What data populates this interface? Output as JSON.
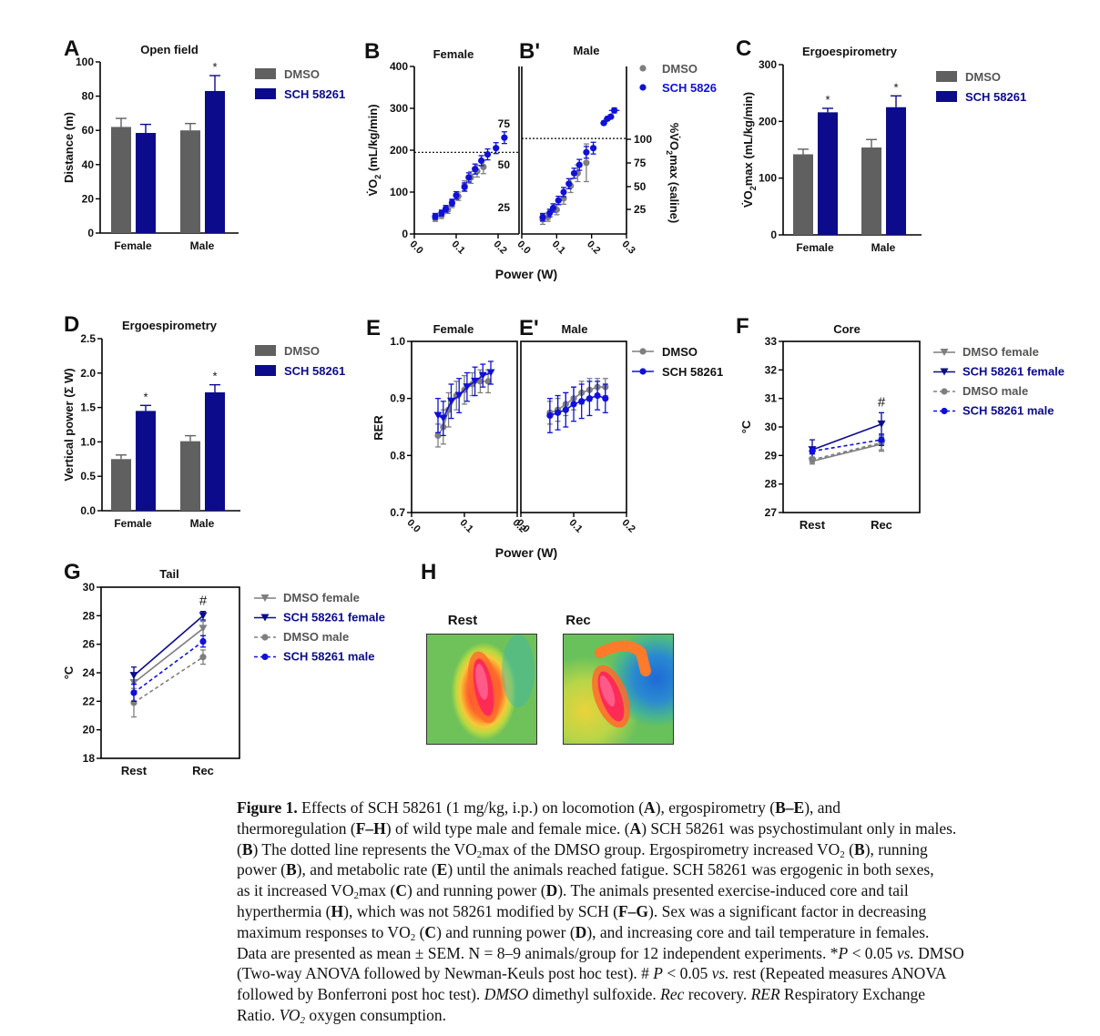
{
  "colors": {
    "dmso": "#606060",
    "sch": "#0b0b8c",
    "sch_bright": "#1010d8",
    "dmso_light": "#7f7f7f"
  },
  "chart_data": [
    {
      "id": "A",
      "panel_letter": "A",
      "type": "bar",
      "title": "Open field",
      "ylabel": "Distance (m)",
      "ylim": [
        0,
        100
      ],
      "yticks": [
        0,
        20,
        40,
        60,
        80,
        100
      ],
      "categories": [
        "Female",
        "Male"
      ],
      "series": [
        {
          "name": "DMSO",
          "values": [
            62,
            60
          ],
          "errors": [
            5,
            4
          ]
        },
        {
          "name": "SCH 58261",
          "values": [
            58.5,
            83
          ],
          "errors": [
            5,
            9
          ]
        }
      ],
      "annotations": [
        {
          "text": "*",
          "series": 1,
          "category": 1
        }
      ],
      "legend": [
        "DMSO",
        "SCH 58261"
      ]
    },
    {
      "id": "B",
      "panel_letter": "B",
      "type": "scatter",
      "title": "Female",
      "ylabel_main": "V̇O",
      "ylabel_sub": "2",
      "ylabel_rest": " (mL/kg/min)",
      "xlim": [
        0,
        0.25
      ],
      "ylim": [
        0,
        400
      ],
      "xticks": [
        "0.0",
        "0.1",
        "0.2"
      ],
      "yticks": [
        0,
        100,
        200,
        300,
        400
      ],
      "right_ticks": [
        "25",
        "50",
        "75"
      ],
      "vo2max_line": 195,
      "series": [
        {
          "name": "DMSO",
          "x": [
            0.05,
            0.065,
            0.08,
            0.09,
            0.105,
            0.12,
            0.135,
            0.15,
            0.165
          ],
          "y": [
            38,
            45,
            58,
            72,
            90,
            115,
            135,
            150,
            160
          ],
          "yerr": [
            8,
            8,
            9,
            9,
            10,
            12,
            14,
            14,
            16
          ]
        },
        {
          "name": "SCH 58261",
          "x": [
            0.05,
            0.065,
            0.075,
            0.09,
            0.1,
            0.12,
            0.13,
            0.145,
            0.16,
            0.175,
            0.195,
            0.215
          ],
          "y": [
            42,
            50,
            60,
            75,
            92,
            112,
            135,
            155,
            175,
            190,
            205,
            230
          ],
          "yerr": [
            7,
            7,
            8,
            8,
            9,
            10,
            11,
            12,
            12,
            13,
            13,
            14
          ]
        }
      ]
    },
    {
      "id": "B2",
      "panel_letter": "B'",
      "type": "scatter",
      "title": "Male",
      "right_label_main": "%V̇O",
      "right_label_sub": "2",
      "right_label_rest": "max (saline)",
      "xlim": [
        0,
        0.3
      ],
      "ylim": [
        0,
        400
      ],
      "xticks": [
        "0.0",
        "0.1",
        "0.2",
        "0.3"
      ],
      "right_ticks": [
        "25",
        "50",
        "75",
        "100"
      ],
      "vo2max_line": 228,
      "series": [
        {
          "name": "DMSO",
          "x": [
            0.06,
            0.075,
            0.1,
            0.12,
            0.14,
            0.16,
            0.185
          ],
          "y": [
            35,
            40,
            58,
            85,
            115,
            145,
            170
          ],
          "yerr": [
            12,
            10,
            12,
            14,
            16,
            20,
            45
          ]
        },
        {
          "name": "SCH 5826",
          "x": [
            0.06,
            0.08,
            0.09,
            0.105,
            0.12,
            0.135,
            0.15,
            0.165,
            0.185,
            0.205,
            0.235,
            0.245,
            0.255,
            0.265
          ],
          "y": [
            40,
            50,
            62,
            80,
            100,
            120,
            145,
            165,
            195,
            205,
            265,
            275,
            280,
            295
          ],
          "yerr": [
            9,
            9,
            10,
            10,
            11,
            12,
            12,
            13,
            14,
            14,
            4,
            4,
            4,
            6
          ],
          "xerr": [
            0,
            0,
            0,
            0,
            0,
            0,
            0,
            0,
            0,
            0,
            0.01,
            0.01,
            0.01,
            0.015
          ]
        }
      ],
      "legend": [
        "DMSO",
        "SCH 5826"
      ]
    },
    {
      "id": "C",
      "panel_letter": "C",
      "type": "bar",
      "title": "Ergoespirometry",
      "ylabel_main": "V̇O",
      "ylabel_sub": "2",
      "ylabel_rest": "max (mL/kg/min)",
      "ylim": [
        0,
        300
      ],
      "yticks": [
        0,
        100,
        200,
        300
      ],
      "categories": [
        "Female",
        "Male"
      ],
      "series": [
        {
          "name": "DMSO",
          "values": [
            142,
            154
          ],
          "errors": [
            9,
            14
          ]
        },
        {
          "name": "SCH 58261",
          "values": [
            216,
            225
          ],
          "errors": [
            7,
            20
          ]
        }
      ],
      "annotations": [
        {
          "text": "*",
          "series": 1,
          "category": 0
        },
        {
          "text": "*",
          "series": 1,
          "category": 1
        }
      ],
      "legend": [
        "DMSO",
        "SCH 58261"
      ]
    },
    {
      "id": "D",
      "panel_letter": "D",
      "type": "bar",
      "title": "Ergoespirometry",
      "ylabel": "Vertical power (Σ W)",
      "ylim": [
        0,
        2.5
      ],
      "yticks": [
        "0.0",
        "0.5",
        "1.0",
        "1.5",
        "2.0",
        "2.5"
      ],
      "categories": [
        "Female",
        "Male"
      ],
      "series": [
        {
          "name": "DMSO",
          "values": [
            0.75,
            1.01
          ],
          "errors": [
            0.06,
            0.08
          ]
        },
        {
          "name": "SCH 58261",
          "values": [
            1.45,
            1.72
          ],
          "errors": [
            0.08,
            0.11
          ]
        }
      ],
      "annotations": [
        {
          "text": "*",
          "series": 1,
          "category": 0
        },
        {
          "text": "*",
          "series": 1,
          "category": 1
        }
      ],
      "legend": [
        "DMSO",
        "SCH 58261"
      ]
    },
    {
      "id": "E",
      "panel_letter": "E",
      "type": "line",
      "title": "Female",
      "ylabel": "RER",
      "xlim": [
        0,
        0.2
      ],
      "ylim": [
        0.7,
        1.0
      ],
      "xticks": [
        "0.0",
        "0.1",
        "0.2"
      ],
      "yticks": [
        "0.7",
        "0.8",
        "0.9",
        "1.0"
      ],
      "series": [
        {
          "name": "DMSO",
          "x": [
            0.05,
            0.06,
            0.07,
            0.085,
            0.1,
            0.115,
            0.13,
            0.145
          ],
          "y": [
            0.835,
            0.85,
            0.88,
            0.905,
            0.915,
            0.925,
            0.93,
            0.93
          ],
          "yerr": [
            0.02,
            0.03,
            0.03,
            0.025,
            0.025,
            0.02,
            0.02,
            0.02
          ]
        },
        {
          "name": "SCH 58261",
          "x": [
            0.05,
            0.06,
            0.075,
            0.09,
            0.105,
            0.12,
            0.135,
            0.15
          ],
          "y": [
            0.87,
            0.865,
            0.895,
            0.905,
            0.92,
            0.93,
            0.94,
            0.945
          ],
          "yerr": [
            0.03,
            0.03,
            0.03,
            0.03,
            0.025,
            0.025,
            0.02,
            0.02
          ]
        }
      ]
    },
    {
      "id": "E2",
      "panel_letter": "E'",
      "type": "line",
      "title": "Male",
      "xlim": [
        0,
        0.2
      ],
      "ylim": [
        0.7,
        1.0
      ],
      "xticks": [
        "0.0",
        "0.1",
        "0.2"
      ],
      "series": [
        {
          "name": "DMSO",
          "x": [
            0.055,
            0.07,
            0.085,
            0.1,
            0.115,
            0.13,
            0.145,
            0.16
          ],
          "y": [
            0.875,
            0.88,
            0.89,
            0.9,
            0.91,
            0.915,
            0.92,
            0.92
          ],
          "yerr": [
            0.02,
            0.02,
            0.02,
            0.02,
            0.02,
            0.02,
            0.015,
            0.015
          ]
        },
        {
          "name": "SCH 58261",
          "x": [
            0.055,
            0.07,
            0.085,
            0.1,
            0.115,
            0.13,
            0.145,
            0.16
          ],
          "y": [
            0.87,
            0.875,
            0.88,
            0.89,
            0.895,
            0.9,
            0.905,
            0.9
          ],
          "yerr": [
            0.03,
            0.03,
            0.03,
            0.03,
            0.03,
            0.03,
            0.025,
            0.025
          ]
        }
      ],
      "legend": [
        "DMSO",
        "SCH 58261"
      ],
      "xlabel": "Power (W)"
    },
    {
      "id": "F",
      "panel_letter": "F",
      "type": "line",
      "title": "Core",
      "ylabel": "°C",
      "ylim": [
        27,
        33
      ],
      "yticks": [
        27,
        28,
        29,
        30,
        31,
        32,
        33
      ],
      "categories": [
        "Rest",
        "Rec"
      ],
      "series": [
        {
          "name": "DMSO female",
          "values": [
            28.8,
            29.4
          ],
          "errors": [
            0.1,
            0.25
          ]
        },
        {
          "name": "SCH 58261 female",
          "values": [
            29.2,
            30.1
          ],
          "errors": [
            0.35,
            0.4
          ]
        },
        {
          "name": "DMSO male",
          "values": [
            28.85,
            29.45
          ],
          "errors": [
            0.1,
            0.25
          ]
        },
        {
          "name": "SCH 58261 male",
          "values": [
            29.15,
            29.55
          ],
          "errors": [
            0.1,
            0.2
          ]
        }
      ],
      "annotations": [
        {
          "text": "#",
          "category": 1
        }
      ],
      "legend": [
        "DMSO female",
        "SCH 58261 female",
        "DMSO male",
        "SCH 58261 male"
      ]
    },
    {
      "id": "G",
      "panel_letter": "G",
      "type": "line",
      "title": "Tail",
      "ylabel": "°C",
      "ylim": [
        18,
        30
      ],
      "yticks": [
        18,
        20,
        22,
        24,
        26,
        28,
        30
      ],
      "categories": [
        "Rest",
        "Rec"
      ],
      "series": [
        {
          "name": "DMSO female",
          "values": [
            23.3,
            27.1
          ],
          "errors": [
            0.6,
            0.5
          ]
        },
        {
          "name": "SCH 58261 female",
          "values": [
            23.8,
            28
          ],
          "errors": [
            0.6,
            0.3
          ]
        },
        {
          "name": "DMSO male",
          "values": [
            21.9,
            25.1
          ],
          "errors": [
            1,
            0.5
          ]
        },
        {
          "name": "SCH 58261 male",
          "values": [
            22.6,
            26.2
          ],
          "errors": [
            0.6,
            0.4
          ]
        }
      ],
      "annotations": [
        {
          "text": "#",
          "category": 1
        }
      ],
      "legend": [
        "DMSO female",
        "SCH 58261 female",
        "DMSO male",
        "SCH 58261 male"
      ]
    }
  ],
  "shared_xlabel_B": "Power (W)",
  "panel_H": {
    "letter": "H",
    "labels": [
      "Rest",
      "Rec"
    ]
  },
  "caption": {
    "lines": [
      [
        {
          "t": "Figure 1.",
          "b": 1
        },
        {
          "t": "   Effects of SCH 58261 (1 mg/kg, i.p.) on locomotion ("
        },
        {
          "t": "A",
          "b": 1
        },
        {
          "t": "), ergospirometry ("
        },
        {
          "t": "B–E",
          "b": 1
        },
        {
          "t": "), and"
        }
      ],
      [
        {
          "t": "thermoregulation ("
        },
        {
          "t": "F–H",
          "b": 1
        },
        {
          "t": ") of wild type male and female mice. ("
        },
        {
          "t": "A",
          "b": 1
        },
        {
          "t": ") SCH 58261 was psychostimulant only in males."
        }
      ],
      [
        {
          "t": "("
        },
        {
          "t": "B",
          "b": 1
        },
        {
          "t": ") The dotted line represents the VO"
        },
        {
          "t": "2",
          "sub": 1
        },
        {
          "t": "max of the DMSO group. Ergospirometry increased VO"
        },
        {
          "t": "2",
          "sub": 1
        },
        {
          "t": " ("
        },
        {
          "t": "B",
          "b": 1
        },
        {
          "t": "), running"
        }
      ],
      [
        {
          "t": "power ("
        },
        {
          "t": "B",
          "b": 1
        },
        {
          "t": "), and metabolic rate ("
        },
        {
          "t": "E",
          "b": 1
        },
        {
          "t": ") until the animals reached fatigue. SCH 58261 was ergogenic in both sexes,"
        }
      ],
      [
        {
          "t": "as it increased VO"
        },
        {
          "t": "2",
          "sub": 1
        },
        {
          "t": "max ("
        },
        {
          "t": "C",
          "b": 1
        },
        {
          "t": ") and running power ("
        },
        {
          "t": "D",
          "b": 1
        },
        {
          "t": "). The animals presented exercise-induced core and tail"
        }
      ],
      [
        {
          "t": "hyperthermia ("
        },
        {
          "t": "H",
          "b": 1
        },
        {
          "t": "), which was not 58261 modified by SCH  ("
        },
        {
          "t": "F–G",
          "b": 1
        },
        {
          "t": "). Sex was a significant factor in decreasing"
        }
      ],
      [
        {
          "t": "maximum responses to VO"
        },
        {
          "t": "2",
          "sub": 1
        },
        {
          "t": " ("
        },
        {
          "t": "C",
          "b": 1
        },
        {
          "t": ") and running power ("
        },
        {
          "t": "D",
          "b": 1
        },
        {
          "t": "), and increasing core and tail temperature in females."
        }
      ],
      [
        {
          "t": "Data are presented as mean ± SEM. N = 8–9 animals/group for 12 independent experiments. *"
        },
        {
          "t": "P",
          "i": 1
        },
        {
          "t": " < 0.05 "
        },
        {
          "t": "vs.",
          "i": 1
        },
        {
          "t": " DMSO"
        }
      ],
      [
        {
          "t": "(Two-way ANOVA followed by Newman-Keuls post hoc test). # "
        },
        {
          "t": "P",
          "i": 1
        },
        {
          "t": " < 0.05 "
        },
        {
          "t": "vs.",
          "i": 1
        },
        {
          "t": " rest (Repeated measures ANOVA"
        }
      ],
      [
        {
          "t": "followed by Bonferroni post hoc test). "
        },
        {
          "t": "DMSO",
          "i": 1
        },
        {
          "t": " dimethyl sulfoxide. "
        },
        {
          "t": "Rec",
          "i": 1
        },
        {
          "t": " recovery. "
        },
        {
          "t": "RER",
          "i": 1
        },
        {
          "t": " Respiratory Exchange"
        }
      ],
      [
        {
          "t": "Ratio. "
        },
        {
          "t": "VO",
          "i": 1
        },
        {
          "t": "2",
          "sub": 1,
          "i": 1
        },
        {
          "t": " oxygen consumption."
        }
      ]
    ]
  }
}
